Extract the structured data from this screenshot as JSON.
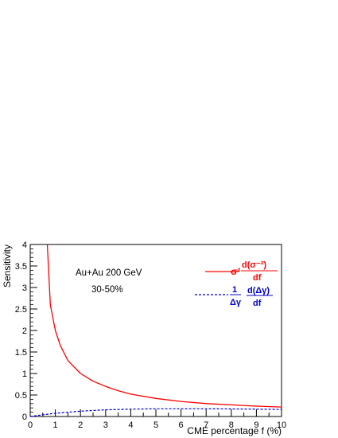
{
  "chart_data": {
    "type": "line",
    "xlabel": "CME percentage f (%)",
    "ylabel": "Sensitivity",
    "xlim": [
      0,
      10
    ],
    "ylim": [
      0,
      4
    ],
    "x_ticks": [
      "0",
      "1",
      "2",
      "3",
      "4",
      "5",
      "6",
      "7",
      "8",
      "9",
      "10"
    ],
    "y_ticks": [
      "0",
      "0.5",
      "1",
      "1.5",
      "2",
      "2.5",
      "3",
      "3.5",
      "4"
    ],
    "grid": false,
    "legend_position": "top-right",
    "annotations": [
      "Au+Au 200 GeV",
      "30-50%"
    ],
    "series": [
      {
        "legend": "σ² d(σ⁻²)/df",
        "color": "#ff0000",
        "style": "solid",
        "x": [
          0.68,
          0.8,
          1.0,
          1.2,
          1.5,
          2.0,
          2.5,
          3.0,
          3.5,
          4.0,
          5.0,
          6.0,
          7.0,
          8.0,
          9.0,
          10.0
        ],
        "y": [
          4.0,
          2.6,
          2.0,
          1.65,
          1.3,
          1.0,
          0.82,
          0.7,
          0.6,
          0.52,
          0.42,
          0.35,
          0.3,
          0.27,
          0.24,
          0.22
        ]
      },
      {
        "legend": "(1/Δγ) d(Δγ)/df",
        "color": "#0000cc",
        "style": "dashed",
        "x": [
          0.0,
          0.5,
          1.0,
          1.5,
          2.0,
          2.5,
          3.0,
          4.0,
          5.0,
          6.0,
          7.0,
          8.0,
          9.0,
          10.0
        ],
        "y": [
          0.0,
          0.04,
          0.075,
          0.1,
          0.125,
          0.14,
          0.155,
          0.17,
          0.18,
          0.18,
          0.18,
          0.175,
          0.17,
          0.165
        ]
      }
    ]
  },
  "legend_text": {
    "red": {
      "prefix": "σ²",
      "num": "d(σ⁻²)",
      "den": "df"
    },
    "blue": {
      "frac_num": "1",
      "frac_den": "Δγ",
      "num": "d(Δγ)",
      "den": "df"
    }
  },
  "colors": {
    "red": "#ff0000",
    "blue": "#0000cc",
    "axis": "#000000"
  }
}
